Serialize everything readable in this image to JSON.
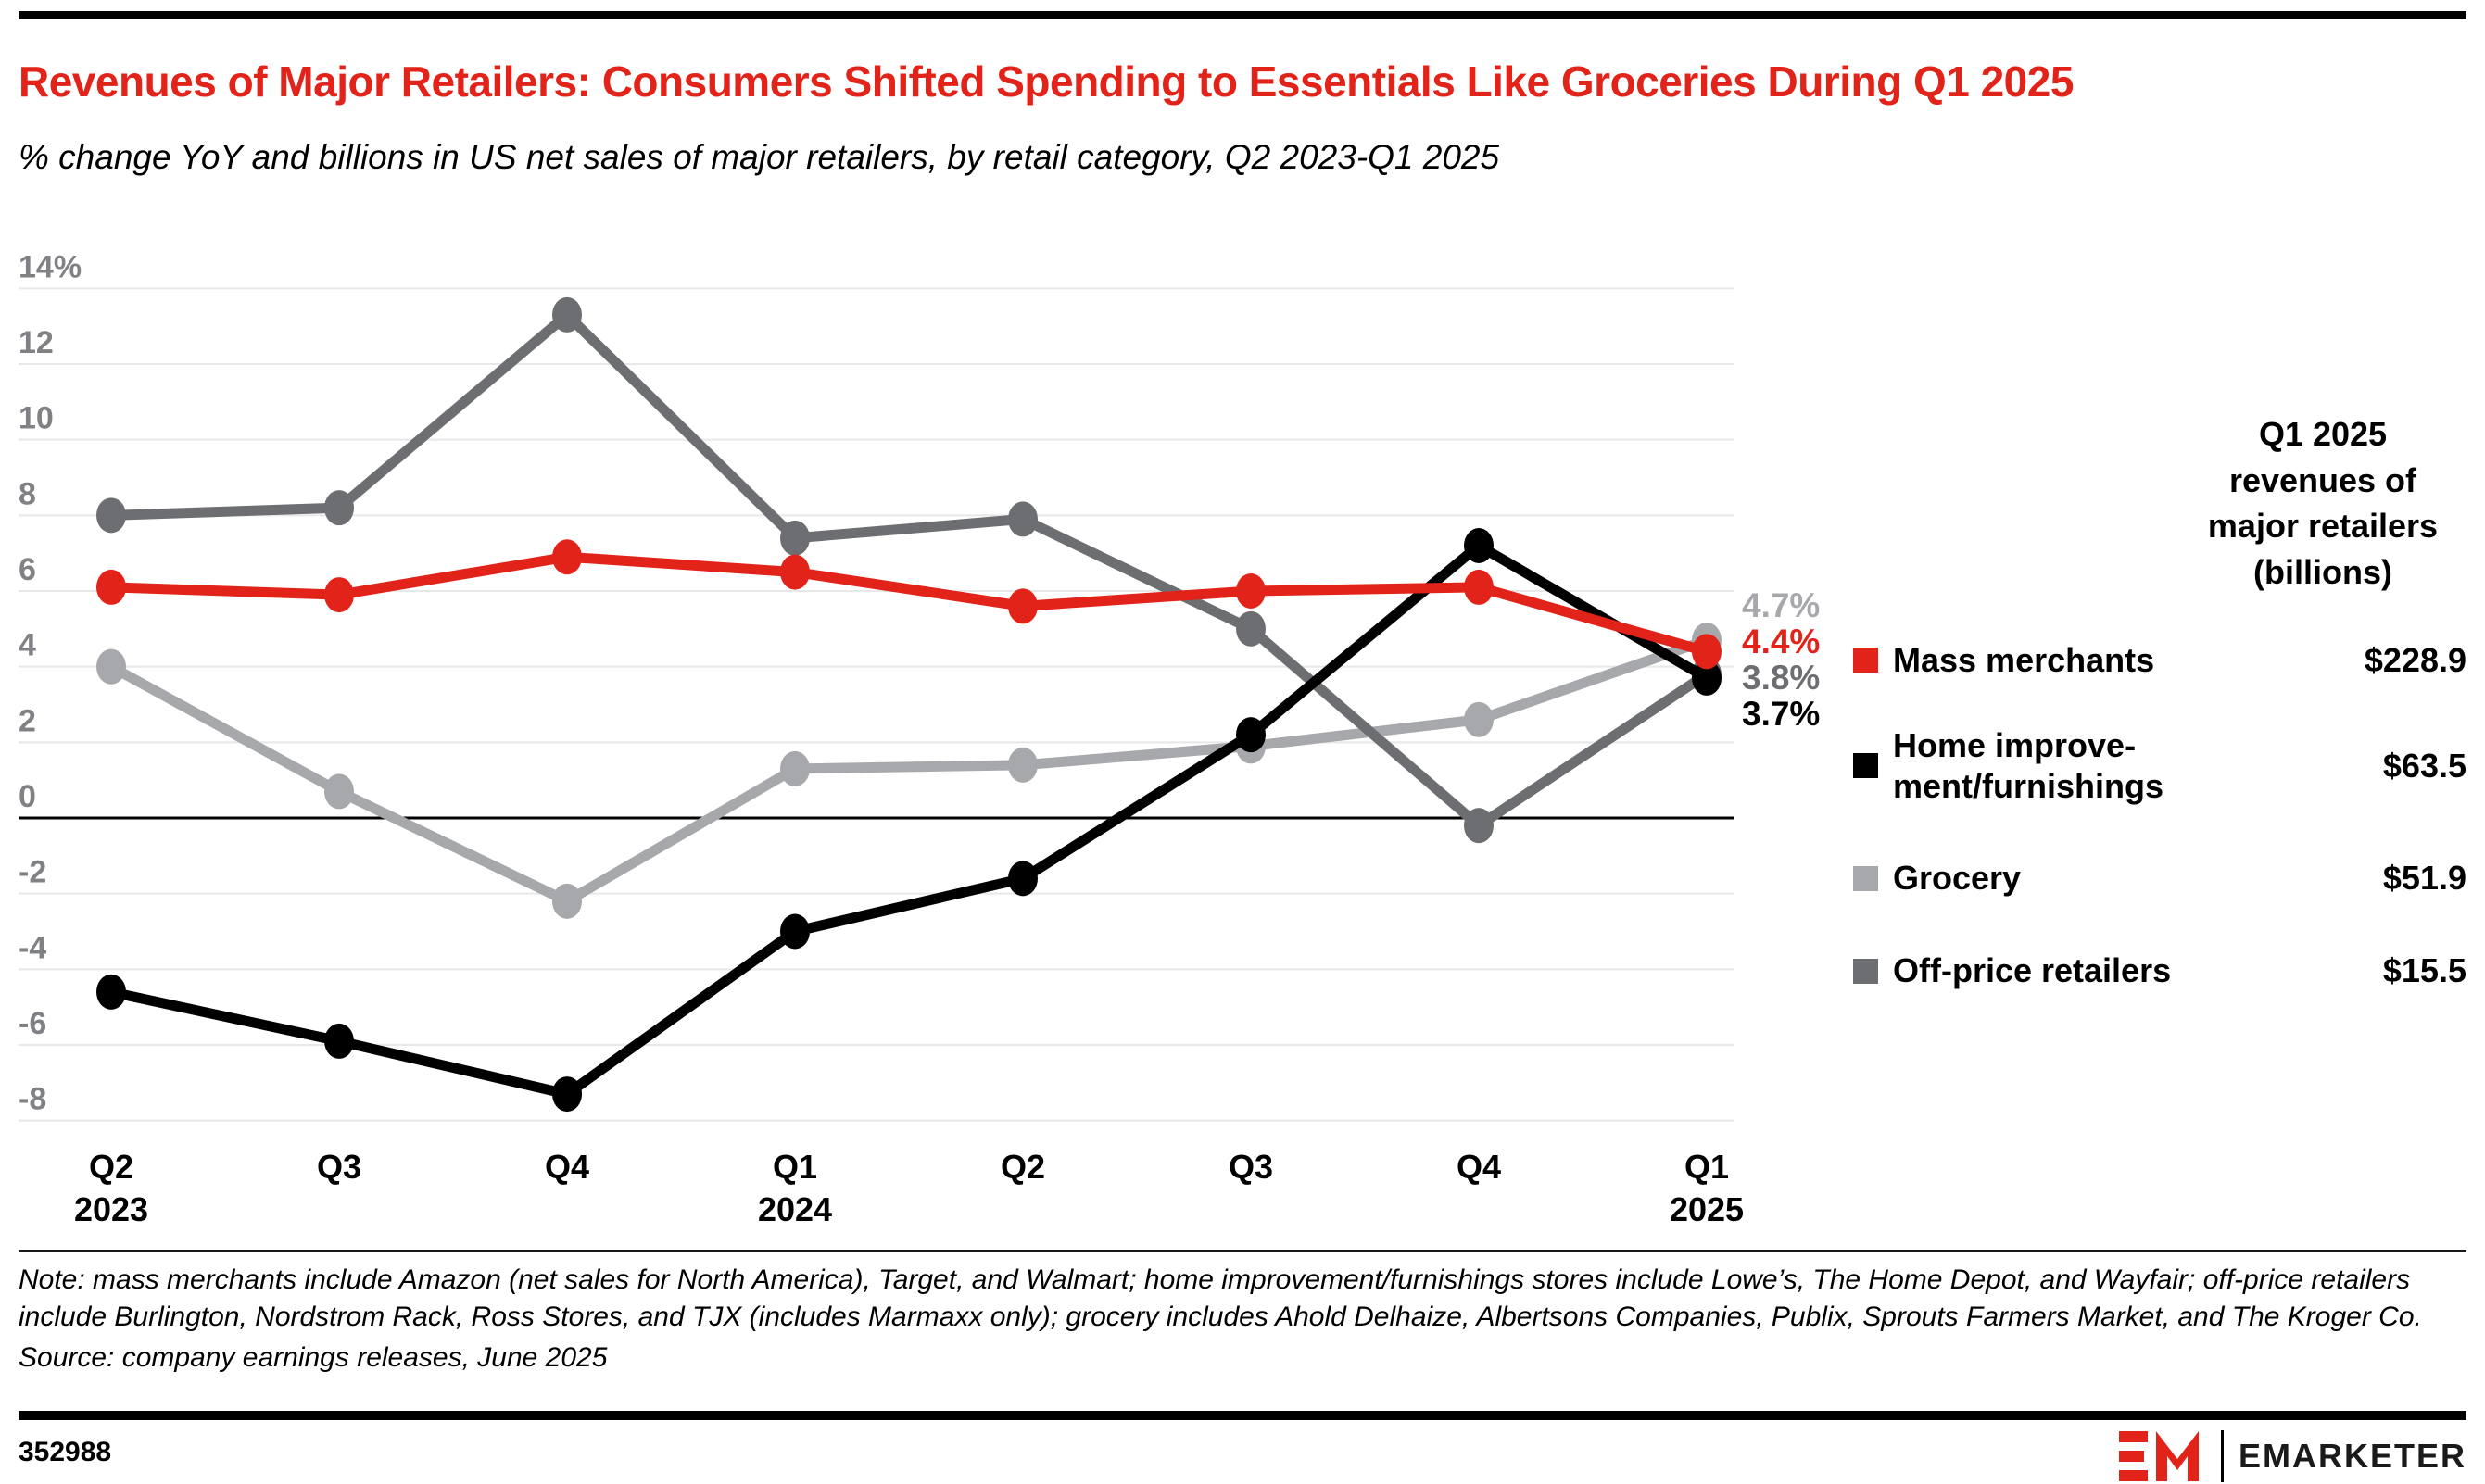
{
  "chart_data": {
    "type": "line",
    "title": "Revenues of Major Retailers: Consumers Shifted Spending to Essentials Like Groceries During Q1 2025",
    "subtitle": "% change YoY and billions in US net sales of major retailers, by retail category, Q2 2023-Q1 2025",
    "categories": [
      "Q2\n2023",
      "Q3",
      "Q4",
      "Q1\n2024",
      "Q2",
      "Q3",
      "Q4",
      "Q1\n2025"
    ],
    "y_axis": {
      "ticks": [
        "14%",
        "12",
        "10",
        "8",
        "6",
        "4",
        "2",
        "0",
        "-2",
        "-4",
        "-6",
        "-8"
      ],
      "tick_values": [
        14,
        12,
        10,
        8,
        6,
        4,
        2,
        0,
        -2,
        -4,
        -6,
        -8
      ],
      "ylim": [
        -8,
        14
      ]
    },
    "grid": true,
    "legend_position": "right",
    "draw_order": [
      2,
      3,
      1,
      0
    ],
    "series": [
      {
        "name": "Mass merchants",
        "legend_label": "Mass merchants",
        "color": "#e2231a",
        "values": [
          6.1,
          5.9,
          6.9,
          6.5,
          5.6,
          6.0,
          6.1,
          4.4
        ],
        "end_label": "4.4%",
        "revenue": "$228.9"
      },
      {
        "name": "Home improvement/furnishings",
        "legend_label": "Home improve-\nment/furnishings",
        "color": "#000000",
        "values": [
          -4.6,
          -5.9,
          -7.3,
          -3.0,
          -1.6,
          2.2,
          7.2,
          3.7
        ],
        "end_label": "3.7%",
        "revenue": "$63.5"
      },
      {
        "name": "Grocery",
        "legend_label": "Grocery",
        "color": "#a6a8ab",
        "values": [
          4.0,
          0.7,
          -2.2,
          1.3,
          1.4,
          1.9,
          2.6,
          4.7
        ],
        "end_label": "4.7%",
        "revenue": "$51.9"
      },
      {
        "name": "Off-price retailers",
        "legend_label": "Off-price retailers",
        "color": "#6d6e71",
        "values": [
          8.0,
          8.2,
          13.3,
          7.4,
          7.9,
          5.0,
          -0.2,
          3.8
        ],
        "end_label": "3.8%",
        "revenue": "$15.5"
      }
    ]
  },
  "legend": {
    "header": "Q1 2025\nrevenues of\nmajor retailers\n(billions)"
  },
  "notes": {
    "note": "Note: mass merchants include Amazon (net sales for North America), Target, and Walmart; home improvement/furnishings stores include Lowe’s, The Home Depot, and Wayfair; off-price retailers include Burlington, Nordstrom Rack, Ross Stores, and TJX (includes Marmaxx only); grocery includes Ahold Delhaize, Albertsons Companies, Publix, Sprouts Farmers Market, and The Kroger Co.",
    "source": "Source: company earnings releases, June 2025"
  },
  "footer": {
    "chart_id": "352988",
    "brand": "EMARKETER"
  }
}
